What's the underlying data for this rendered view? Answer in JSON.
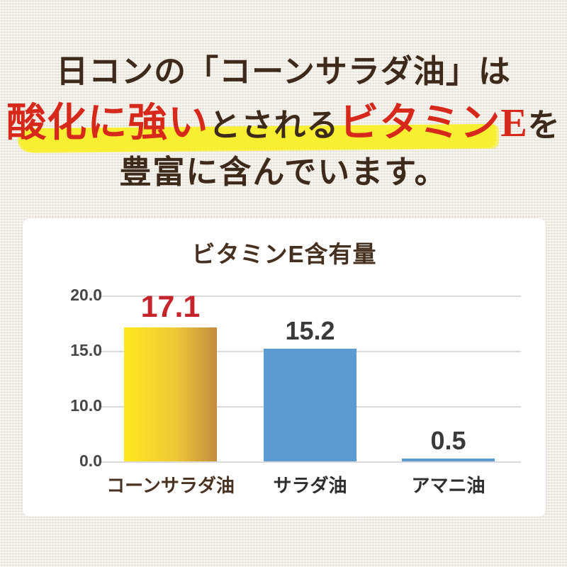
{
  "header": {
    "line1": "日コンの「コーンサラダ油」は",
    "line2": {
      "seg1": "酸化に強い",
      "seg2": "とされる",
      "seg3": "ビタミンE",
      "seg4": "を"
    },
    "line3": "豊富に含んでいます。"
  },
  "chart_data": {
    "type": "bar",
    "title": "ビタミンE含有量",
    "categories": [
      "コーンサラダ油",
      "サラダ油",
      "アマニ油"
    ],
    "values": [
      17.1,
      15.2,
      0.5
    ],
    "value_labels": [
      "17.1",
      "15.2",
      "0.5"
    ],
    "y_ticks": [
      {
        "label": "20.0",
        "value": 20
      },
      {
        "label": "15.0",
        "value": 15
      },
      {
        "label": "10.0",
        "value": 10
      },
      {
        "label": "0.0",
        "value": 0
      }
    ],
    "ylim": [
      0,
      20
    ],
    "grid": true,
    "legend": false,
    "xlabel": "",
    "ylabel": "",
    "bar_styles": [
      {
        "fill": "gradient",
        "from": "#ffe81e",
        "mid": "#eec937",
        "to": "#c28d3e",
        "value_color": "#c5242c",
        "category_color": "#4a3222"
      },
      {
        "fill": "solid",
        "color": "#5b9ad3",
        "value_color": "#3a3a3a",
        "category_color": "#2e2e2e"
      },
      {
        "fill": "solid",
        "color": "#5b9ad3",
        "value_color": "#3a3a3a",
        "category_color": "#2e2e2e"
      }
    ]
  },
  "colors": {
    "background": "#f1eee6",
    "card": "#ffffff",
    "headline_brown": "#3e2a1b",
    "headline_red": "#d7291b",
    "highlight_yellow": "#f9ef29",
    "title_brown": "#46301f",
    "grid_line": "#dadada",
    "tick_label": "#464646",
    "bar_blue": "#5b9ad3"
  }
}
